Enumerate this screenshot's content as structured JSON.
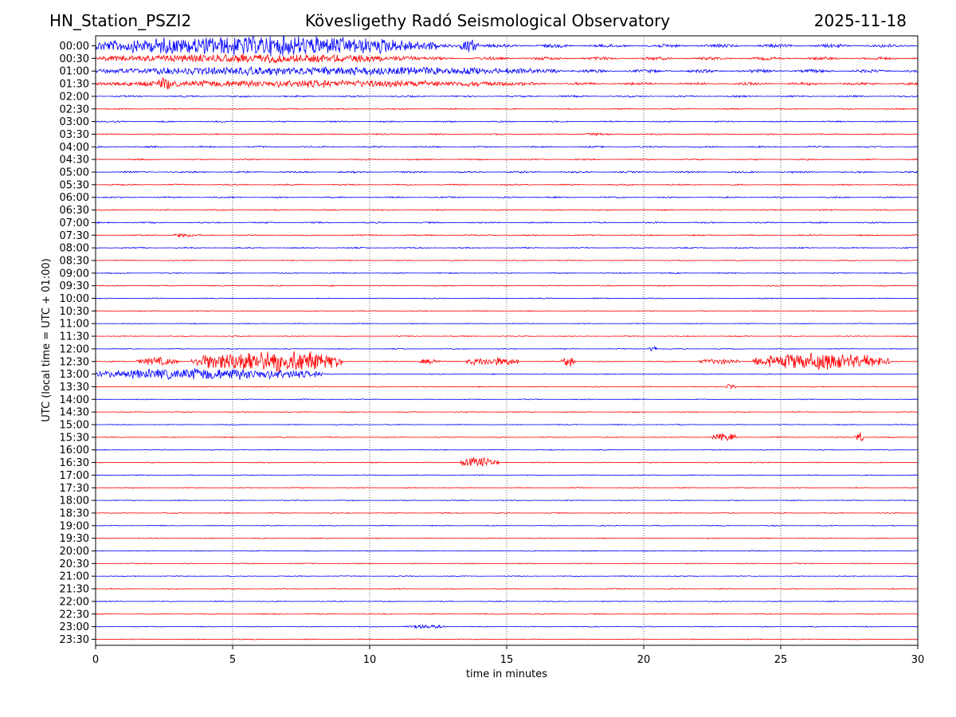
{
  "header": {
    "station": "HN_Station_PSZI2",
    "title": "Kövesligethy Radó Seismological Observatory",
    "date": "2025-11-18"
  },
  "chart_data": {
    "type": "line",
    "title": "Kövesligethy Radó Seismological Observatory",
    "xlabel": "time in minutes",
    "ylabel": "UTC (local time = UTC + 01:00)",
    "xlim": [
      0,
      30
    ],
    "x_ticks": [
      0,
      5,
      10,
      15,
      20,
      25,
      30
    ],
    "grid": "vertical dotted lines at x ticks",
    "colors": {
      "even_rows": "#0000ff",
      "odd_rows": "#ff0000"
    },
    "rows": [
      "00:00",
      "00:30",
      "01:00",
      "01:30",
      "02:00",
      "02:30",
      "03:00",
      "03:30",
      "04:00",
      "04:30",
      "05:00",
      "05:30",
      "06:00",
      "06:30",
      "07:00",
      "07:30",
      "08:00",
      "08:30",
      "09:00",
      "09:30",
      "10:00",
      "10:30",
      "11:00",
      "11:30",
      "12:00",
      "12:30",
      "13:00",
      "13:30",
      "14:00",
      "14:30",
      "15:00",
      "15:30",
      "16:00",
      "16:30",
      "17:00",
      "17:30",
      "18:00",
      "18:30",
      "19:00",
      "19:30",
      "20:00",
      "20:30",
      "21:00",
      "21:30",
      "22:00",
      "22:30",
      "23:00",
      "23:30"
    ],
    "baseline_noise": [
      2.2,
      2.0,
      2.1,
      1.8,
      1.1,
      0.8,
      0.9,
      0.8,
      1.0,
      0.9,
      1.1,
      0.9,
      0.9,
      0.8,
      0.9,
      0.8,
      0.8,
      0.6,
      0.7,
      0.7,
      0.6,
      0.6,
      0.6,
      0.6,
      0.6,
      0.7,
      0.6,
      0.6,
      0.6,
      0.6,
      0.6,
      0.6,
      0.6,
      0.6,
      0.6,
      0.6,
      0.6,
      0.6,
      0.6,
      0.6,
      0.6,
      0.6,
      0.6,
      0.6,
      0.6,
      0.6,
      0.6,
      0.6
    ],
    "events": [
      {
        "row": 0,
        "start": 0.0,
        "end": 12.5,
        "amp": 14
      },
      {
        "row": 0,
        "start": 13.3,
        "end": 14.0,
        "amp": 9
      },
      {
        "row": 1,
        "start": 0.0,
        "end": 12.0,
        "amp": 6
      },
      {
        "row": 2,
        "start": 0.0,
        "end": 17.0,
        "amp": 6
      },
      {
        "row": 3,
        "start": 0.0,
        "end": 16.0,
        "amp": 5
      },
      {
        "row": 3,
        "start": 2.2,
        "end": 2.9,
        "amp": 9
      },
      {
        "row": 7,
        "start": 17.8,
        "end": 18.5,
        "amp": 3
      },
      {
        "row": 15,
        "start": 2.8,
        "end": 3.6,
        "amp": 3
      },
      {
        "row": 24,
        "start": 20.2,
        "end": 20.5,
        "amp": 5
      },
      {
        "row": 25,
        "start": 1.5,
        "end": 3.0,
        "amp": 6
      },
      {
        "row": 25,
        "start": 3.5,
        "end": 9.0,
        "amp": 16
      },
      {
        "row": 25,
        "start": 11.8,
        "end": 12.6,
        "amp": 4
      },
      {
        "row": 25,
        "start": 13.5,
        "end": 15.5,
        "amp": 6
      },
      {
        "row": 25,
        "start": 17.0,
        "end": 17.5,
        "amp": 7
      },
      {
        "row": 25,
        "start": 22.0,
        "end": 23.5,
        "amp": 4
      },
      {
        "row": 25,
        "start": 24.0,
        "end": 29.0,
        "amp": 12
      },
      {
        "row": 26,
        "start": 0.0,
        "end": 8.3,
        "amp": 8
      },
      {
        "row": 27,
        "start": 23.0,
        "end": 23.4,
        "amp": 4
      },
      {
        "row": 31,
        "start": 22.5,
        "end": 23.4,
        "amp": 6
      },
      {
        "row": 31,
        "start": 27.7,
        "end": 28.0,
        "amp": 8
      },
      {
        "row": 33,
        "start": 13.3,
        "end": 14.7,
        "amp": 7
      },
      {
        "row": 46,
        "start": 11.2,
        "end": 12.8,
        "amp": 3
      }
    ]
  }
}
